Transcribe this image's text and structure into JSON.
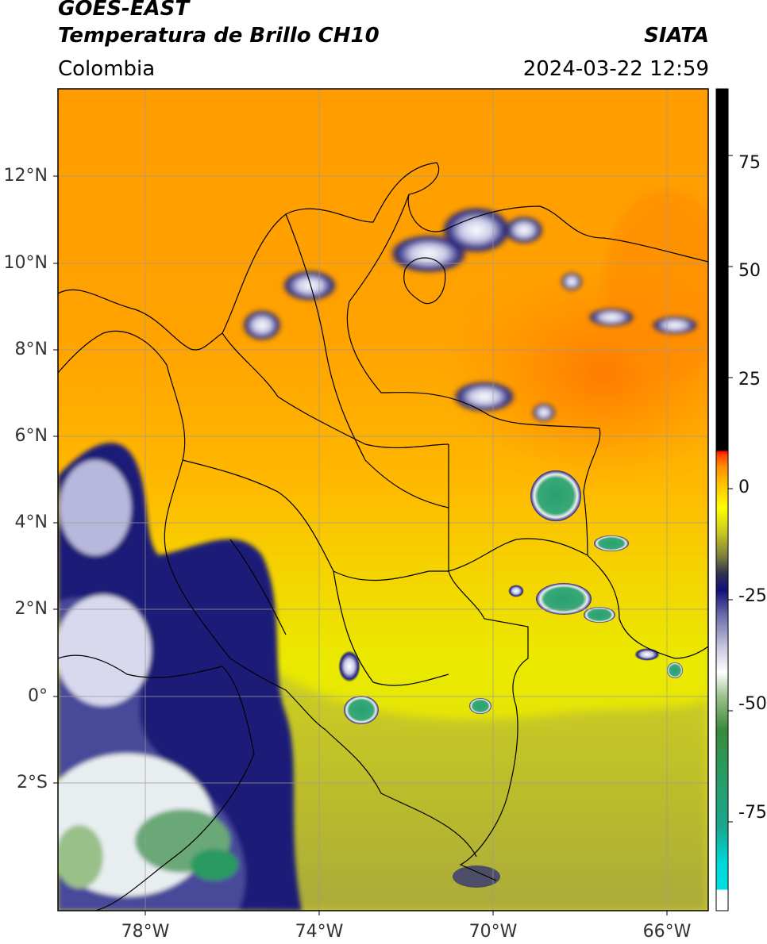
{
  "header": {
    "satellite": "GOES-EAST",
    "product": "Temperatura de Brillo CH10",
    "region": "Colombia",
    "org": "SIATA",
    "datetime": "2024-03-22 12:59"
  },
  "map": {
    "lat_ticks": [
      "12°N",
      "10°N",
      "8°N",
      "6°N",
      "4°N",
      "2°N",
      "0°",
      "2°S"
    ],
    "lon_ticks": [
      "78°W",
      "74°W",
      "70°W",
      "66°W"
    ],
    "extent": {
      "lon_min": -80.0,
      "lon_max": -65.0,
      "lat_min": -5.0,
      "lat_max": 14.0
    },
    "gridlines": true
  },
  "colorbar": {
    "ticks": [
      "75",
      "50",
      "25",
      "0",
      "-25",
      "-50",
      "-75"
    ],
    "tick_values": [
      75,
      50,
      25,
      0,
      -25,
      -50,
      -75
    ],
    "range": [
      -95,
      90
    ],
    "unit": ""
  },
  "colors": {
    "warm_orange": "#ff9a00",
    "yellow": "#e8e800",
    "navy": "#14146e",
    "green": "#2a9a60"
  }
}
